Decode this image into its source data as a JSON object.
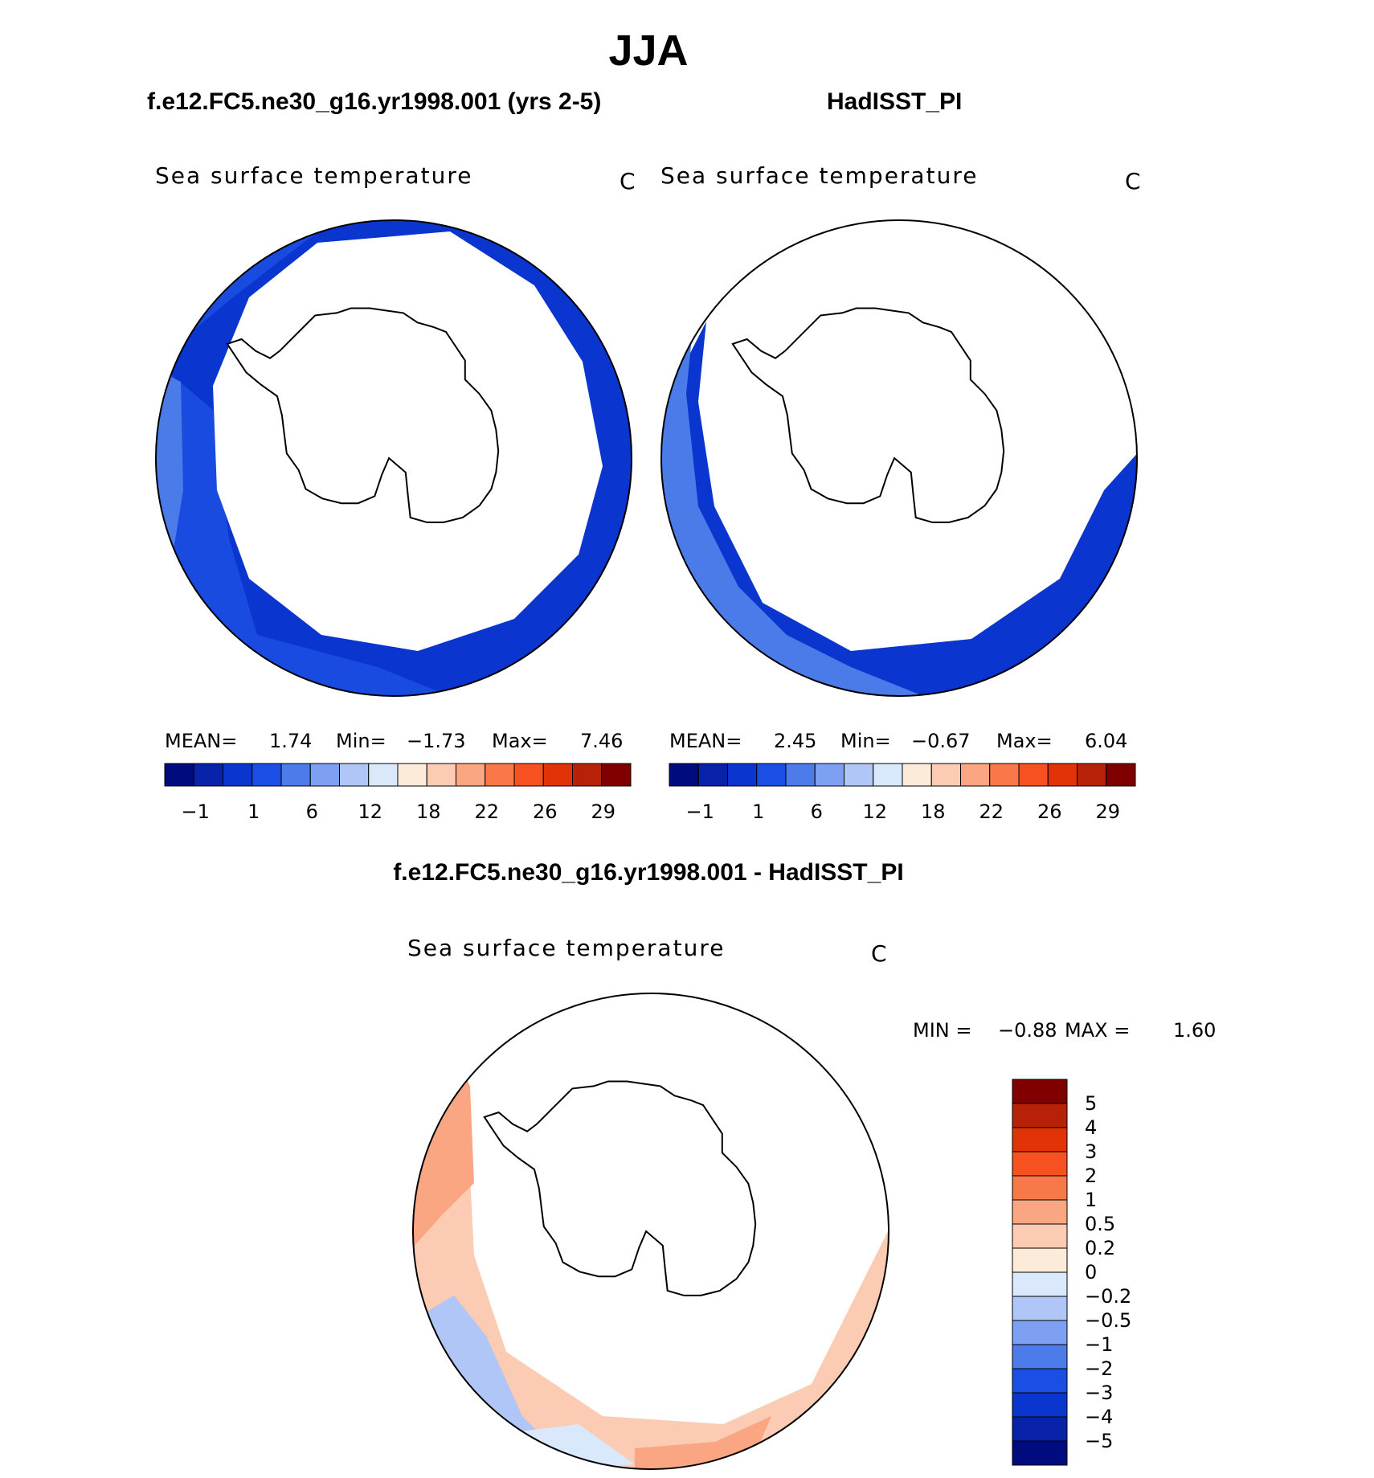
{
  "title": "JJA",
  "left_panel": {
    "case_title": "f.e12.FC5.ne30_g16.yr1998.001 (yrs 2-5)",
    "variable": "Sea surface temperature",
    "unit": "C",
    "mean_label": "MEAN=",
    "mean_value": "1.74",
    "min_label": "Min=",
    "min_value": "−1.73",
    "max_label": "Max=",
    "max_value": "7.46"
  },
  "right_panel": {
    "case_title": "HadISST_PI",
    "variable": "Sea surface temperature",
    "unit": "C",
    "mean_label": "MEAN=",
    "mean_value": "2.45",
    "min_label": "Min=",
    "min_value": "−0.67",
    "max_label": "Max=",
    "max_value": "6.04"
  },
  "diff_panel": {
    "title": "f.e12.FC5.ne30_g16.yr1998.001 - HadISST_PI",
    "variable": "Sea surface temperature",
    "unit": "C",
    "min_label": "MIN =",
    "min_value": "−0.88",
    "max_label": "MAX =",
    "max_value": "1.60"
  },
  "colors": {
    "abs_scale": [
      "#000b7e",
      "#0822a9",
      "#0a35cf",
      "#1b4ee5",
      "#4d7bea",
      "#7ea0f3",
      "#b0c6f7",
      "#d9e8fb",
      "#fdebd9",
      "#fccbb3",
      "#fba683",
      "#f8784a",
      "#f75021",
      "#e13208",
      "#b72108",
      "#800000"
    ],
    "diff_scale": [
      "#000b7e",
      "#0822a9",
      "#0a35cf",
      "#1b4ee5",
      "#4d7bea",
      "#7ea0f3",
      "#b0c6f7",
      "#d9e8fb",
      "#fdebd9",
      "#fccbb3",
      "#fba683",
      "#f8784a",
      "#f75021",
      "#e13208",
      "#b72108",
      "#800000"
    ],
    "model_ocean": "#1a4be0",
    "obs_ocean": "#4a7be8",
    "ice_edge_band": "#0a35cf",
    "diff_warm": "#fba683",
    "diff_warm_light": "#fccbb3",
    "diff_cool": "#b0c6f7",
    "diff_cool_light": "#d9e8fb",
    "coast": "#000000"
  },
  "chart_data": [
    {
      "type": "heatmap",
      "title": "f.e12.FC5.ne30_g16.yr1998.001 (yrs 2-5)",
      "variable": "Sea surface temperature",
      "units": "C",
      "mean": 1.74,
      "min": -1.73,
      "max": 7.46,
      "colorbar_ticks": [
        "−1",
        "1",
        "6",
        "12",
        "18",
        "22",
        "26",
        "29"
      ],
      "colorbar_levels": 16,
      "colorbar_position": "bottom"
    },
    {
      "type": "heatmap",
      "title": "HadISST_PI",
      "variable": "Sea surface temperature",
      "units": "C",
      "mean": 2.45,
      "min": -0.67,
      "max": 6.04,
      "colorbar_ticks": [
        "−1",
        "1",
        "6",
        "12",
        "18",
        "22",
        "26",
        "29"
      ],
      "colorbar_levels": 16,
      "colorbar_position": "bottom"
    },
    {
      "type": "heatmap",
      "title": "f.e12.FC5.ne30_g16.yr1998.001 - HadISST_PI",
      "variable": "Sea surface temperature",
      "units": "C",
      "min": -0.88,
      "max": 1.6,
      "colorbar_ticks": [
        "5",
        "4",
        "3",
        "2",
        "1",
        "0.5",
        "0.2",
        "0",
        "−0.2",
        "−0.5",
        "−1",
        "−2",
        "−3",
        "−4",
        "−5"
      ],
      "colorbar_levels": 16,
      "colorbar_position": "right"
    }
  ]
}
